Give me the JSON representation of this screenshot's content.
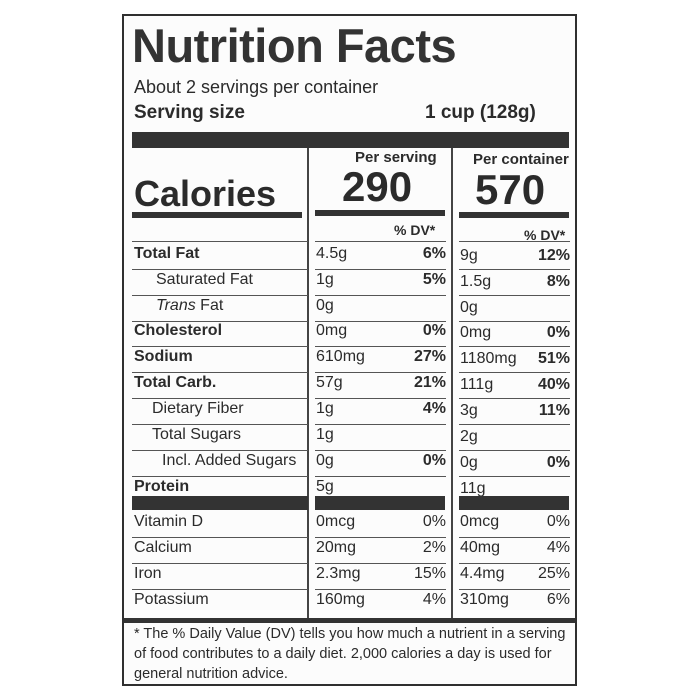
{
  "title": "Nutrition Facts",
  "servings_per_container": "About 2 servings per container",
  "serving_size_label": "Serving size",
  "serving_size_value": "1 cup (128g)",
  "per_serving_label": "Per serving",
  "per_container_label": "Per container",
  "calories_label": "Calories",
  "calories_per_serving": "290",
  "calories_per_container": "570",
  "dv_header": "% DV*",
  "nutrients": [
    {
      "name": "Total Fat",
      "serving_amount": "4.5g",
      "serving_dv": "6%",
      "container_amount": "9g",
      "container_dv": "12%"
    },
    {
      "name": "Saturated Fat",
      "serving_amount": "1g",
      "serving_dv": "5%",
      "container_amount": "1.5g",
      "container_dv": "8%"
    },
    {
      "name_italic": "Trans",
      "name_rest": " Fat",
      "serving_amount": "0g",
      "serving_dv": "",
      "container_amount": "0g",
      "container_dv": ""
    },
    {
      "name": "Cholesterol",
      "serving_amount": "0mg",
      "serving_dv": "0%",
      "container_amount": "0mg",
      "container_dv": "0%"
    },
    {
      "name": "Sodium",
      "serving_amount": "610mg",
      "serving_dv": "27%",
      "container_amount": "1180mg",
      "container_dv": "51%"
    },
    {
      "name": "Total Carb.",
      "serving_amount": "57g",
      "serving_dv": "21%",
      "container_amount": "111g",
      "container_dv": "40%"
    },
    {
      "name": "Dietary Fiber",
      "serving_amount": "1g",
      "serving_dv": "4%",
      "container_amount": "3g",
      "container_dv": "11%"
    },
    {
      "name": "Total Sugars",
      "serving_amount": "1g",
      "serving_dv": "",
      "container_amount": "2g",
      "container_dv": ""
    },
    {
      "name": "Incl. Added Sugars",
      "serving_amount": "0g",
      "serving_dv": "0%",
      "container_amount": "0g",
      "container_dv": "0%"
    },
    {
      "name": "Protein",
      "serving_amount": "5g",
      "serving_dv": "",
      "container_amount": "11g",
      "container_dv": ""
    }
  ],
  "vitamins": [
    {
      "name": "Vitamin D",
      "serving_amount": "0mcg",
      "serving_dv": "0%",
      "container_amount": "0mcg",
      "container_dv": "0%"
    },
    {
      "name": "Calcium",
      "serving_amount": "20mg",
      "serving_dv": "2%",
      "container_amount": "40mg",
      "container_dv": "4%"
    },
    {
      "name": "Iron",
      "serving_amount": "2.3mg",
      "serving_dv": "15%",
      "container_amount": "4.4mg",
      "container_dv": "25%"
    },
    {
      "name": "Potassium",
      "serving_amount": "160mg",
      "serving_dv": "4%",
      "container_amount": "310mg",
      "container_dv": "6%"
    }
  ],
  "footnote": "* The % Daily Value (DV) tells you how much a nutrient in a serving of food contributes to a daily diet. 2,000 calories a day is used for general nutrition advice."
}
